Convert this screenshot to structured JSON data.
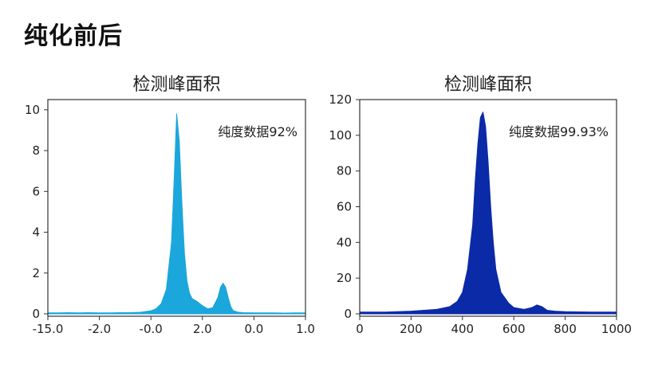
{
  "page": {
    "title": "纯化前后"
  },
  "chart_data": [
    {
      "type": "area",
      "title": "检测峰面积",
      "annotation": "纯度数据92%",
      "color": "#1ba6dc",
      "xlabel": "",
      "ylabel": "",
      "ylim": [
        0,
        10.5
      ],
      "xlim": [
        0,
        100
      ],
      "x_tick_positions": [
        0,
        20,
        40,
        60,
        80,
        100
      ],
      "x_tick_labels": [
        "-15.0",
        "-2.0",
        "-0.0",
        "2.0",
        "0.0",
        "1.0"
      ],
      "y_ticks": [
        0,
        2,
        4,
        6,
        8,
        10
      ],
      "y_tick_labels": [
        "0",
        "2",
        "4",
        "6",
        "8",
        "10"
      ],
      "x": [
        0,
        4,
        8,
        12,
        16,
        20,
        24,
        28,
        32,
        36,
        40,
        42,
        44,
        46,
        48,
        49,
        50,
        51,
        52,
        53,
        54,
        55,
        56,
        58,
        60,
        62,
        64,
        66,
        67,
        68,
        69,
        70,
        71,
        72,
        74,
        76,
        80,
        84,
        88,
        92,
        96,
        100
      ],
      "values": [
        0.05,
        0.05,
        0.06,
        0.05,
        0.06,
        0.05,
        0.05,
        0.06,
        0.06,
        0.08,
        0.15,
        0.25,
        0.5,
        1.2,
        3.5,
        6.5,
        9.8,
        8.5,
        5.5,
        3.0,
        1.6,
        1.0,
        0.75,
        0.6,
        0.4,
        0.25,
        0.3,
        0.8,
        1.3,
        1.5,
        1.3,
        0.8,
        0.35,
        0.15,
        0.08,
        0.06,
        0.05,
        0.05,
        0.05,
        0.04,
        0.05,
        0.05
      ],
      "grid": false
    },
    {
      "type": "area",
      "title": "检测峰面积",
      "annotation": "纯度数据99.93%",
      "color": "#0a2aa8",
      "xlabel": "",
      "ylabel": "",
      "ylim": [
        0,
        120
      ],
      "xlim": [
        0,
        1000
      ],
      "x_tick_positions": [
        0,
        200,
        400,
        600,
        800,
        1000
      ],
      "x_tick_labels": [
        "0",
        "200",
        "400",
        "600",
        "800",
        "1000"
      ],
      "y_ticks": [
        0,
        20,
        40,
        60,
        80,
        100,
        120
      ],
      "y_tick_labels": [
        "0",
        "20",
        "40",
        "60",
        "80",
        "100",
        "120"
      ],
      "x": [
        0,
        100,
        200,
        300,
        350,
        380,
        400,
        420,
        440,
        450,
        460,
        470,
        480,
        490,
        500,
        510,
        520,
        530,
        550,
        580,
        600,
        640,
        670,
        690,
        710,
        730,
        760,
        800,
        900,
        1000
      ],
      "values": [
        1,
        1,
        1.5,
        2.5,
        4,
        7,
        12,
        25,
        50,
        75,
        95,
        110,
        113,
        105,
        85,
        60,
        40,
        25,
        12,
        6,
        3.5,
        2.5,
        3.5,
        5,
        4,
        2,
        1.5,
        1.2,
        1,
        1
      ],
      "grid": false
    }
  ]
}
